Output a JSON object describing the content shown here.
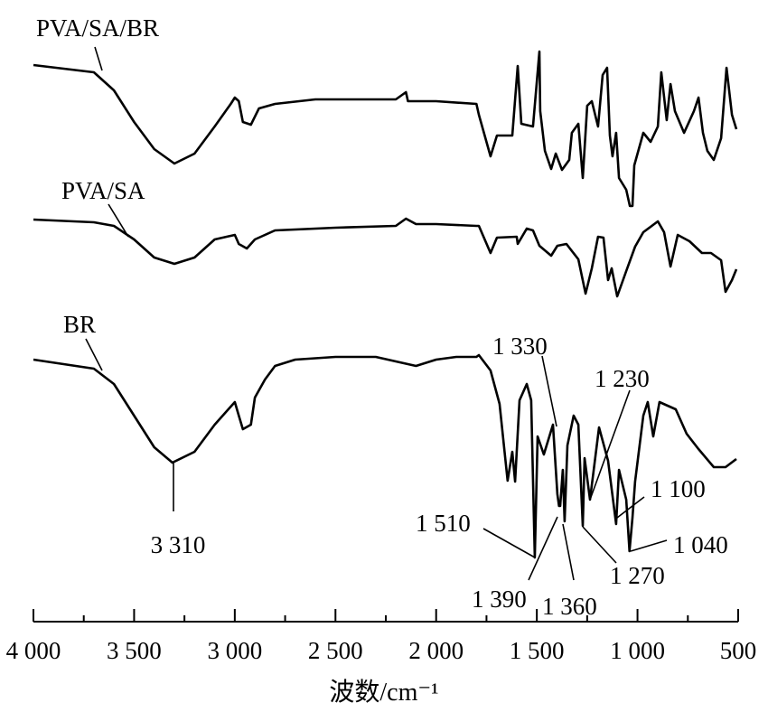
{
  "chart_data": {
    "type": "line",
    "title": "",
    "xlabel": "波数/cm⁻¹",
    "ylabel": "",
    "xlim": [
      4000,
      500
    ],
    "xreversed": true,
    "ylim": [
      0,
      70
    ],
    "y_units": "relative transmittance (a.u., offset per trace)",
    "grid": false,
    "xticks": [
      4000,
      3500,
      3000,
      2500,
      2000,
      1500,
      1000,
      500
    ],
    "xtick_labels": [
      "4 000",
      "3 500",
      "3 000",
      "2 500",
      "2 000",
      "1 500",
      "1 000",
      "500"
    ],
    "minor_xticks": [
      3750,
      3250,
      2750,
      2250,
      1750,
      1250,
      750
    ],
    "series": [
      {
        "name": "PVA/SA/BR",
        "points": [
          [
            4000,
            62.8
          ],
          [
            3700,
            62
          ],
          [
            3600,
            60
          ],
          [
            3500,
            56.5
          ],
          [
            3400,
            53.5
          ],
          [
            3300,
            51.9
          ],
          [
            3200,
            53
          ],
          [
            3100,
            56
          ],
          [
            3020,
            58.5
          ],
          [
            3000,
            59.2
          ],
          [
            2980,
            58.8
          ],
          [
            2960,
            56.5
          ],
          [
            2920,
            56.2
          ],
          [
            2880,
            58
          ],
          [
            2800,
            58.5
          ],
          [
            2600,
            59
          ],
          [
            2400,
            59
          ],
          [
            2200,
            59
          ],
          [
            2150,
            59.8
          ],
          [
            2140,
            58.8
          ],
          [
            2000,
            58.8
          ],
          [
            1800,
            58.5
          ],
          [
            1788,
            57.3
          ],
          [
            1730,
            52.7
          ],
          [
            1698,
            55
          ],
          [
            1622,
            55
          ],
          [
            1595,
            62.7
          ],
          [
            1577,
            56.3
          ],
          [
            1519,
            56
          ],
          [
            1487,
            64.3
          ],
          [
            1483,
            57.7
          ],
          [
            1460,
            53.3
          ],
          [
            1429,
            51.3
          ],
          [
            1406,
            53
          ],
          [
            1375,
            51.2
          ],
          [
            1339,
            52.3
          ],
          [
            1326,
            55.3
          ],
          [
            1294,
            56.3
          ],
          [
            1272,
            50.3
          ],
          [
            1250,
            58.3
          ],
          [
            1227,
            58.8
          ],
          [
            1196,
            56
          ],
          [
            1173,
            61.7
          ],
          [
            1151,
            62.5
          ],
          [
            1137,
            55
          ],
          [
            1124,
            52.7
          ],
          [
            1106,
            55.3
          ],
          [
            1092,
            50.3
          ],
          [
            1056,
            49
          ],
          [
            1038,
            47.2
          ],
          [
            1025,
            47.2
          ],
          [
            1016,
            51.7
          ],
          [
            971,
            55.3
          ],
          [
            935,
            54.3
          ],
          [
            899,
            56
          ],
          [
            882,
            62
          ],
          [
            855,
            56.7
          ],
          [
            836,
            60.7
          ],
          [
            814,
            57.7
          ],
          [
            769,
            55.3
          ],
          [
            720,
            57.7
          ],
          [
            697,
            59.2
          ],
          [
            675,
            55.3
          ],
          [
            653,
            53.3
          ],
          [
            621,
            52.3
          ],
          [
            585,
            54.7
          ],
          [
            558,
            62.5
          ],
          [
            531,
            57.3
          ],
          [
            509,
            55.7
          ]
        ]
      },
      {
        "name": "PVA/SA",
        "points": [
          [
            4000,
            45.7
          ],
          [
            3700,
            45.4
          ],
          [
            3600,
            45
          ],
          [
            3500,
            43.5
          ],
          [
            3400,
            41.5
          ],
          [
            3300,
            40.8
          ],
          [
            3200,
            41.5
          ],
          [
            3100,
            43.5
          ],
          [
            3000,
            44
          ],
          [
            2980,
            43
          ],
          [
            2940,
            42.5
          ],
          [
            2900,
            43.5
          ],
          [
            2800,
            44.5
          ],
          [
            2500,
            44.8
          ],
          [
            2200,
            45
          ],
          [
            2150,
            45.8
          ],
          [
            2100,
            45.2
          ],
          [
            2000,
            45.2
          ],
          [
            1800,
            45
          ],
          [
            1788,
            45
          ],
          [
            1730,
            42
          ],
          [
            1698,
            43.7
          ],
          [
            1600,
            43.8
          ],
          [
            1595,
            43
          ],
          [
            1550,
            44.7
          ],
          [
            1519,
            44.5
          ],
          [
            1487,
            42.8
          ],
          [
            1429,
            41.7
          ],
          [
            1398,
            42.8
          ],
          [
            1353,
            43
          ],
          [
            1294,
            41.3
          ],
          [
            1258,
            37.5
          ],
          [
            1227,
            40.3
          ],
          [
            1196,
            43.8
          ],
          [
            1169,
            43.7
          ],
          [
            1146,
            39
          ],
          [
            1128,
            40.3
          ],
          [
            1101,
            37.2
          ],
          [
            1056,
            40
          ],
          [
            1012,
            42.7
          ],
          [
            971,
            44.3
          ],
          [
            899,
            45.5
          ],
          [
            868,
            44.3
          ],
          [
            836,
            40.5
          ],
          [
            800,
            44
          ],
          [
            742,
            43.3
          ],
          [
            680,
            42
          ],
          [
            635,
            42
          ],
          [
            585,
            41.2
          ],
          [
            563,
            37.7
          ],
          [
            531,
            39
          ],
          [
            509,
            40.2
          ]
        ]
      },
      {
        "name": "BR",
        "points": [
          [
            4000,
            30.2
          ],
          [
            3700,
            29.2
          ],
          [
            3600,
            27.5
          ],
          [
            3500,
            24
          ],
          [
            3400,
            20.5
          ],
          [
            3310,
            18.8
          ],
          [
            3200,
            20
          ],
          [
            3100,
            23
          ],
          [
            3020,
            25
          ],
          [
            3000,
            25.5
          ],
          [
            2980,
            24
          ],
          [
            2960,
            22.5
          ],
          [
            2920,
            23
          ],
          [
            2900,
            26
          ],
          [
            2850,
            28
          ],
          [
            2800,
            29.5
          ],
          [
            2700,
            30.2
          ],
          [
            2500,
            30.5
          ],
          [
            2300,
            30.5
          ],
          [
            2200,
            30
          ],
          [
            2100,
            29.5
          ],
          [
            2000,
            30.2
          ],
          [
            1900,
            30.5
          ],
          [
            1800,
            30.5
          ],
          [
            1788,
            30.7
          ],
          [
            1730,
            29
          ],
          [
            1685,
            25.3
          ],
          [
            1645,
            16.8
          ],
          [
            1622,
            20
          ],
          [
            1608,
            16.7
          ],
          [
            1586,
            25.7
          ],
          [
            1550,
            27.5
          ],
          [
            1528,
            25.7
          ],
          [
            1510,
            8.3
          ],
          [
            1496,
            21.7
          ],
          [
            1465,
            19.7
          ],
          [
            1420,
            23
          ],
          [
            1398,
            15.3
          ],
          [
            1390,
            14
          ],
          [
            1384,
            14
          ],
          [
            1371,
            18
          ],
          [
            1362,
            12.3
          ],
          [
            1348,
            20.7
          ],
          [
            1317,
            24
          ],
          [
            1294,
            23
          ],
          [
            1272,
            11.8
          ],
          [
            1263,
            19.3
          ],
          [
            1236,
            14.7
          ],
          [
            1191,
            22.7
          ],
          [
            1146,
            19
          ],
          [
            1106,
            12
          ],
          [
            1092,
            18
          ],
          [
            1056,
            14.7
          ],
          [
            1040,
            9
          ],
          [
            1025,
            12.7
          ],
          [
            1012,
            16.7
          ],
          [
            971,
            24
          ],
          [
            949,
            25.5
          ],
          [
            922,
            21.7
          ],
          [
            891,
            25.5
          ],
          [
            810,
            24.7
          ],
          [
            756,
            22
          ],
          [
            697,
            20.3
          ],
          [
            621,
            18.3
          ],
          [
            563,
            18.3
          ],
          [
            509,
            19.2
          ]
        ]
      }
    ],
    "annotations": [
      {
        "text": "PVA/SA/BR",
        "target": "series label"
      },
      {
        "text": "PVA/SA",
        "target": "series label"
      },
      {
        "text": "BR",
        "target": "series label"
      },
      {
        "text": "3 310",
        "wavenumber": 3310,
        "series": "BR"
      },
      {
        "text": "1 330",
        "wavenumber": 1330,
        "series": "BR"
      },
      {
        "text": "1 230",
        "wavenumber": 1230,
        "series": "BR"
      },
      {
        "text": "1 100",
        "wavenumber": 1100,
        "series": "BR"
      },
      {
        "text": "1 040",
        "wavenumber": 1040,
        "series": "BR"
      },
      {
        "text": "1 510",
        "wavenumber": 1510,
        "series": "BR"
      },
      {
        "text": "1 390",
        "wavenumber": 1390,
        "series": "BR"
      },
      {
        "text": "1 360",
        "wavenumber": 1360,
        "series": "BR"
      },
      {
        "text": "1 270",
        "wavenumber": 1270,
        "series": "BR"
      }
    ]
  }
}
